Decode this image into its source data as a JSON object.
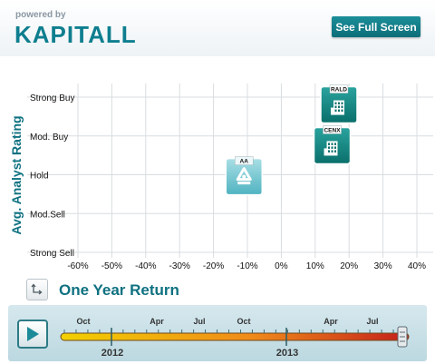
{
  "header": {
    "powered_by": "powered by",
    "logo_text": "KAPITALL",
    "full_screen_label": "See Full Screen"
  },
  "colors": {
    "teal": "#0e7e8f",
    "dark_teal": "#0f7180",
    "grid": "#d9dde0"
  },
  "chart_data": {
    "type": "scatter",
    "ylabel": "Avg. Analyst Rating",
    "xlabel": "One Year Return",
    "y_categories": [
      "Strong Sell",
      "Mod.Sell",
      "Hold",
      "Mod. Buy",
      "Strong Buy"
    ],
    "x_ticks": [
      "-60%",
      "-50%",
      "-40%",
      "-30%",
      "-20%",
      "-10%",
      "0%",
      "10%",
      "20%",
      "30%",
      "40%"
    ],
    "xlim": [
      -60,
      40
    ],
    "ylim": [
      0,
      4
    ],
    "grid": true,
    "points": [
      {
        "ticker": "RALD",
        "x": 17,
        "y": 3.8,
        "icon": "building-icon"
      },
      {
        "ticker": "CENX",
        "x": 15,
        "y": 2.75,
        "icon": "building-icon"
      },
      {
        "ticker": "AA",
        "x": -11,
        "y": 1.95,
        "icon": "recycle-icon"
      }
    ]
  },
  "timeline": {
    "months": [
      "Oct",
      "Apr",
      "Jul",
      "Oct",
      "Apr",
      "Jul"
    ],
    "years": [
      "2012",
      "2013"
    ]
  }
}
